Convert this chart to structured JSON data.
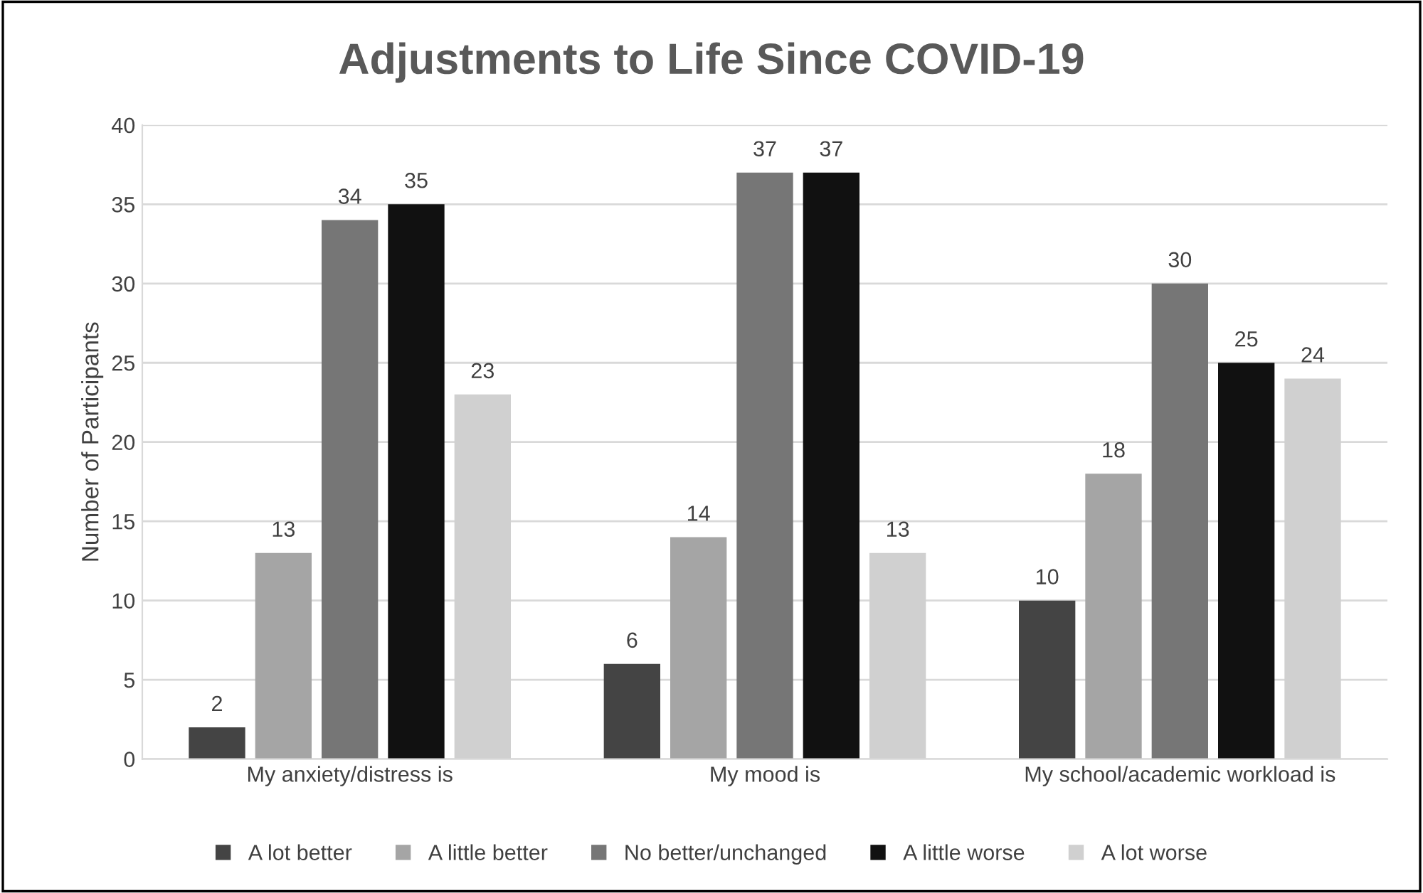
{
  "chart_data": {
    "type": "bar",
    "title": "Adjustments to Life Since COVID-19",
    "ylabel": "Number of Participants",
    "categories": [
      "My anxiety/distress is",
      "My mood is",
      "My school/academic workload is"
    ],
    "series": [
      {
        "name": "A lot better",
        "color": "#444444",
        "values": [
          2,
          6,
          10
        ]
      },
      {
        "name": "A little better",
        "color": "#a5a5a5",
        "values": [
          13,
          14,
          18
        ]
      },
      {
        "name": "No better/unchanged",
        "color": "#767676",
        "values": [
          34,
          37,
          30
        ]
      },
      {
        "name": "A little worse",
        "color": "#111111",
        "values": [
          35,
          37,
          25
        ]
      },
      {
        "name": "A lot worse",
        "color": "#d0d0d0",
        "values": [
          23,
          13,
          24
        ]
      }
    ],
    "ylim": [
      0,
      40
    ],
    "yticks": [
      0,
      5,
      10,
      15,
      20,
      25,
      30,
      35,
      40
    ],
    "grid": "y",
    "legend": "bottom",
    "data_labels": true
  }
}
